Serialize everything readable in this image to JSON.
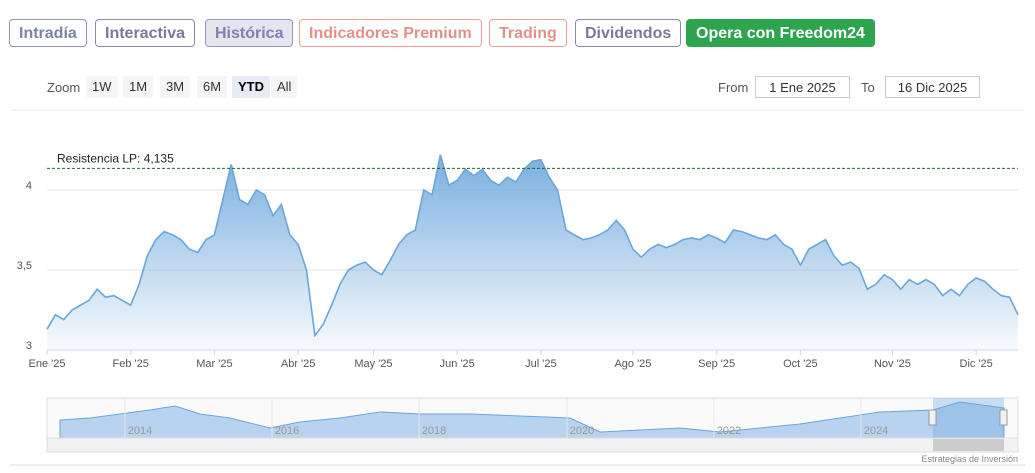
{
  "tabs": [
    "Intradía",
    "Interactiva",
    "Histórica",
    "Indicadores Premium",
    "Trading",
    "Dividendos",
    "Opera con Freedom24"
  ],
  "zoom": {
    "label": "Zoom",
    "buttons": [
      "1W",
      "1M",
      "3M",
      "6M",
      "YTD",
      "All"
    ]
  },
  "range": {
    "from_label": "From",
    "from": "1 Ene 2025",
    "to_label": "To",
    "to": "16 Dic 2025"
  },
  "chart_data": {
    "type": "area",
    "color": "#6aa6dc",
    "grid": true,
    "annotation": {
      "text": "Resistencia LP: 4,135",
      "value": 4.135
    },
    "ylim": [
      3,
      4.5
    ],
    "yticks": [
      3,
      {
        "value": 3.5,
        "label": "3,5"
      },
      4
    ],
    "categories": [
      "Ene '25",
      null,
      null,
      null,
      null,
      null,
      null,
      null,
      null,
      null,
      "Feb '25",
      null,
      null,
      null,
      null,
      null,
      null,
      null,
      null,
      null,
      "Mar '25",
      null,
      null,
      null,
      null,
      null,
      null,
      null,
      null,
      null,
      "Abr '25",
      null,
      null,
      null,
      null,
      null,
      null,
      null,
      null,
      "May '25",
      null,
      null,
      null,
      null,
      null,
      null,
      null,
      null,
      null,
      "Jun '25",
      null,
      null,
      null,
      null,
      null,
      null,
      null,
      null,
      null,
      "Jul '25",
      null,
      null,
      null,
      null,
      null,
      null,
      null,
      null,
      null,
      null,
      "Ago '25",
      null,
      null,
      null,
      null,
      null,
      null,
      null,
      null,
      null,
      "Sep '25",
      null,
      null,
      null,
      null,
      null,
      null,
      null,
      null,
      null,
      "Oct '25",
      null,
      null,
      null,
      null,
      null,
      null,
      null,
      null,
      null,
      null,
      "Nov '25",
      null,
      null,
      null,
      null,
      null,
      null,
      null,
      null,
      null,
      "Dic '25",
      null,
      null,
      null,
      null,
      null
    ],
    "values": [
      3.13,
      3.22,
      3.19,
      3.25,
      3.28,
      3.31,
      3.38,
      3.33,
      3.34,
      3.31,
      3.28,
      3.41,
      3.59,
      3.69,
      3.74,
      3.72,
      3.69,
      3.63,
      3.61,
      3.69,
      3.72,
      3.94,
      4.16,
      3.94,
      3.91,
      4.0,
      3.97,
      3.84,
      3.91,
      3.72,
      3.66,
      3.5,
      3.09,
      3.16,
      3.28,
      3.41,
      3.5,
      3.53,
      3.55,
      3.5,
      3.47,
      3.56,
      3.66,
      3.72,
      3.75,
      4.0,
      3.97,
      4.22,
      4.03,
      4.06,
      4.13,
      4.09,
      4.13,
      4.06,
      4.03,
      4.08,
      4.05,
      4.13,
      4.18,
      4.19,
      4.08,
      4.0,
      3.75,
      3.72,
      3.69,
      3.7,
      3.72,
      3.75,
      3.81,
      3.75,
      3.63,
      3.58,
      3.63,
      3.66,
      3.64,
      3.66,
      3.69,
      3.7,
      3.69,
      3.72,
      3.7,
      3.67,
      3.75,
      3.74,
      3.72,
      3.7,
      3.69,
      3.72,
      3.66,
      3.63,
      3.53,
      3.63,
      3.66,
      3.69,
      3.59,
      3.53,
      3.55,
      3.51,
      3.38,
      3.41,
      3.47,
      3.44,
      3.38,
      3.44,
      3.41,
      3.44,
      3.41,
      3.34,
      3.38,
      3.34,
      3.41,
      3.45,
      3.43,
      3.38,
      3.34,
      3.33,
      3.22
    ]
  },
  "navigator": {
    "labels": [
      "2014",
      "2016",
      "2018",
      "2020",
      "2022",
      "2024"
    ]
  },
  "credit": "Estrategias de Inversión"
}
